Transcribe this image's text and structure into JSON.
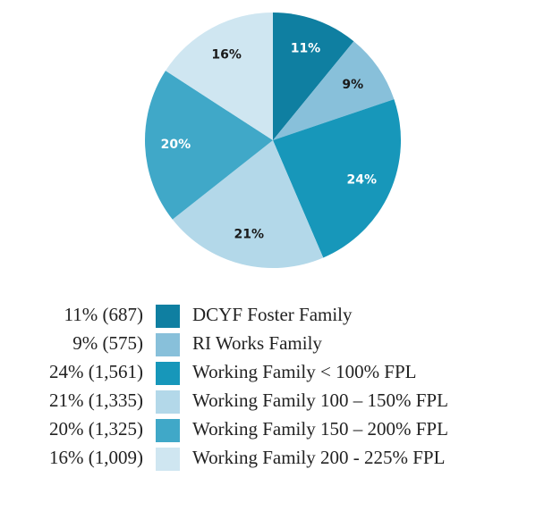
{
  "chart_data": {
    "type": "pie",
    "categories": [
      "DCYF Foster Family",
      "RI Works Family",
      "Working Family < 100% FPL",
      "Working Family 100 – 150% FPL",
      "Working Family 150 – 200% FPL",
      "Working Family 200 - 225% FPL"
    ],
    "values": [
      11,
      9,
      24,
      21,
      20,
      16
    ],
    "value_labels": [
      "11%",
      "9%",
      "24%",
      "21%",
      "20%",
      "16%"
    ],
    "counts": [
      687,
      575,
      1561,
      1335,
      1325,
      1009
    ],
    "count_labels": [
      "(687)",
      "(575)",
      "(1,561)",
      "(1,335)",
      "(1,325)",
      "(1,009)"
    ],
    "colors": [
      "#0f7fa1",
      "#88c0da",
      "#1797ba",
      "#b3d8e9",
      "#40a8c8",
      "#cfe6f1"
    ],
    "label_colors": [
      "#ffffff",
      "#1a1a1a",
      "#ffffff",
      "#1a1a1a",
      "#ffffff",
      "#1a1a1a"
    ]
  }
}
